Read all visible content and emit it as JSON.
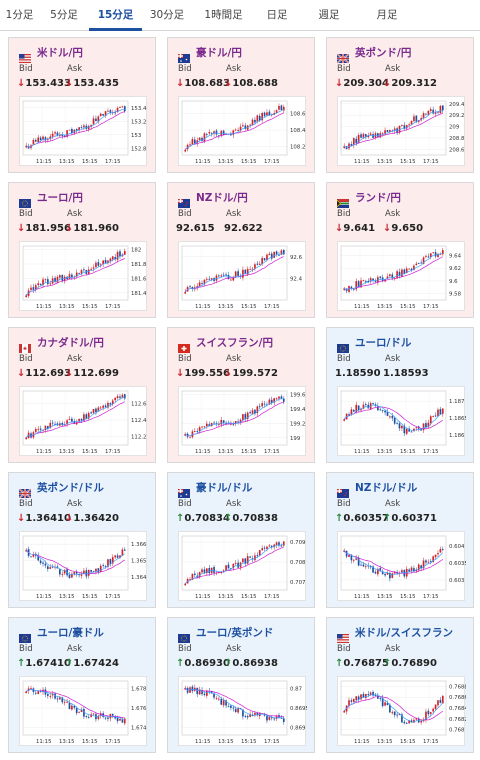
{
  "tabs": [
    {
      "label": "1分足",
      "active": false
    },
    {
      "label": "5分足",
      "active": false
    },
    {
      "label": "15分足",
      "active": true
    },
    {
      "label": "30分足",
      "active": false
    },
    {
      "label": "1時間足",
      "active": false
    },
    {
      "label": "日足",
      "active": false
    },
    {
      "label": "週足",
      "active": false
    },
    {
      "label": "月足",
      "active": false
    }
  ],
  "labels": {
    "bid": "Bid",
    "ask": "Ask"
  },
  "arrows": {
    "down": "↓",
    "up": "↑"
  },
  "colors": {
    "accent": "#1e50a2",
    "pair_jpy": "#7a2a8c",
    "down": "#d0242a",
    "up": "#2b8a3e",
    "card_red": "#fcecec",
    "card_blue": "#eaf3fb",
    "candle_up": "#d0242a",
    "candle_down": "#1e50a2",
    "ma": "#d020d0",
    "ma2": "#40a0ff"
  },
  "cards": [
    {
      "name": "米ドル/円",
      "flag": "us-flag",
      "theme": "red",
      "bid_dir": "down",
      "ask_dir": "down",
      "bid": "153.433",
      "ask": "153.435",
      "chart_data": {
        "type": "candlestick",
        "x_ticks": [
          "11:15",
          "13:15",
          "15:15",
          "17:15"
        ],
        "y_ticks": [
          "153.4",
          "153.2",
          "153",
          "152.8"
        ],
        "ylim": [
          152.7,
          153.5
        ],
        "trend": "up"
      }
    },
    {
      "name": "豪ドル/円",
      "flag": "au-flag",
      "theme": "red",
      "bid_dir": "down",
      "ask_dir": "down",
      "bid": "108.683",
      "ask": "108.688",
      "chart_data": {
        "type": "candlestick",
        "x_ticks": [
          "11:15",
          "13:15",
          "15:15",
          "17:15"
        ],
        "y_ticks": [
          "108.6",
          "108.4",
          "108.2"
        ],
        "ylim": [
          108.1,
          108.75
        ],
        "trend": "up"
      }
    },
    {
      "name": "英ポンド/円",
      "flag": "uk-flag",
      "theme": "red",
      "bid_dir": "down",
      "ask_dir": "down",
      "bid": "209.304",
      "ask": "209.312",
      "chart_data": {
        "type": "candlestick",
        "x_ticks": [
          "11:15",
          "13:15",
          "15:15",
          "17:15"
        ],
        "y_ticks": [
          "209.4",
          "209.2",
          "209",
          "208.8",
          "208.6"
        ],
        "ylim": [
          208.5,
          209.45
        ],
        "trend": "up"
      }
    },
    {
      "name": "ユーロ/円",
      "flag": "eu-flag",
      "theme": "red",
      "bid_dir": "down",
      "ask_dir": "down",
      "bid": "181.956",
      "ask": "181.960",
      "chart_data": {
        "type": "candlestick",
        "x_ticks": [
          "11:15",
          "13:15",
          "15:15",
          "17:15"
        ],
        "y_ticks": [
          "182",
          "181.8",
          "181.6",
          "181.4"
        ],
        "ylim": [
          181.3,
          182.05
        ],
        "trend": "up"
      }
    },
    {
      "name": "NZドル/円",
      "flag": "nz-flag",
      "theme": "red",
      "bid_dir": "none",
      "ask_dir": "none",
      "bid": "92.615",
      "ask": "92.622",
      "chart_data": {
        "type": "candlestick",
        "x_ticks": [
          "11:15",
          "13:15",
          "15:15",
          "17:15"
        ],
        "y_ticks": [
          "92.6",
          "92.4"
        ],
        "ylim": [
          92.2,
          92.7
        ],
        "trend": "up"
      }
    },
    {
      "name": "ランド/円",
      "flag": "za-flag",
      "theme": "red",
      "bid_dir": "down",
      "ask_dir": "down",
      "bid": "9.641",
      "ask": "9.650",
      "chart_data": {
        "type": "candlestick",
        "x_ticks": [
          "11:15",
          "13:15",
          "15:15",
          "17:15"
        ],
        "y_ticks": [
          "9.64",
          "9.62",
          "9.6",
          "9.58"
        ],
        "ylim": [
          9.57,
          9.655
        ],
        "trend": "up"
      }
    },
    {
      "name": "カナダドル/円",
      "flag": "ca-flag",
      "theme": "red",
      "bid_dir": "down",
      "ask_dir": "down",
      "bid": "112.693",
      "ask": "112.699",
      "chart_data": {
        "type": "candlestick",
        "x_ticks": [
          "11:15",
          "13:15",
          "15:15",
          "17:15"
        ],
        "y_ticks": [
          "112.6",
          "112.4",
          "112.2"
        ],
        "ylim": [
          112.1,
          112.75
        ],
        "trend": "up"
      }
    },
    {
      "name": "スイスフラン/円",
      "flag": "ch-flag",
      "theme": "red",
      "bid_dir": "down",
      "ask_dir": "down",
      "bid": "199.556",
      "ask": "199.572",
      "chart_data": {
        "type": "candlestick",
        "x_ticks": [
          "11:15",
          "13:15",
          "15:15",
          "17:15"
        ],
        "y_ticks": [
          "199.6",
          "199.4",
          "199.2",
          "199"
        ],
        "ylim": [
          198.9,
          199.65
        ],
        "trend": "up"
      }
    },
    {
      "name": "ユーロ/ドル",
      "flag": "eu-flag",
      "theme": "blue",
      "bid_dir": "none",
      "ask_dir": "none",
      "bid": "1.18590",
      "ask": "1.18593",
      "chart_data": {
        "type": "candlestick",
        "x_ticks": [
          "11:15",
          "13:15",
          "15:15",
          "17:15"
        ],
        "y_ticks": [
          "1.187",
          "1.1865",
          "1.186"
        ],
        "ylim": [
          1.1857,
          1.1873
        ],
        "trend": "flat"
      }
    },
    {
      "name": "英ポンド/ドル",
      "flag": "uk-flag",
      "theme": "blue",
      "bid_dir": "down",
      "ask_dir": "down",
      "bid": "1.36410",
      "ask": "1.36420",
      "chart_data": {
        "type": "candlestick",
        "x_ticks": [
          "11:15",
          "13:15",
          "15:15",
          "17:15"
        ],
        "y_ticks": [
          "1.366",
          "1.365",
          "1.364"
        ],
        "ylim": [
          1.3632,
          1.3665
        ],
        "trend": "dip"
      }
    },
    {
      "name": "豪ドル/ドル",
      "flag": "au-flag",
      "theme": "blue",
      "bid_dir": "up",
      "ask_dir": "up",
      "bid": "0.70834",
      "ask": "0.70838",
      "chart_data": {
        "type": "candlestick",
        "x_ticks": [
          "11:15",
          "13:15",
          "15:15",
          "17:15"
        ],
        "y_ticks": [
          "0.709",
          "0.708",
          "0.707"
        ],
        "ylim": [
          0.7066,
          0.7093
        ],
        "trend": "up"
      }
    },
    {
      "name": "NZドル/ドル",
      "flag": "nz-flag",
      "theme": "blue",
      "bid_dir": "up",
      "ask_dir": "up",
      "bid": "0.60357",
      "ask": "0.60371",
      "chart_data": {
        "type": "candlestick",
        "x_ticks": [
          "11:15",
          "13:15",
          "15:15",
          "17:15"
        ],
        "y_ticks": [
          "0.604",
          "0.6035",
          "0.603"
        ],
        "ylim": [
          0.6027,
          0.6043
        ],
        "trend": "dip"
      }
    },
    {
      "name": "ユーロ/豪ドル",
      "flag": "eu-flag",
      "theme": "blue",
      "bid_dir": "up",
      "ask_dir": "up",
      "bid": "1.67410",
      "ask": "1.67424",
      "chart_data": {
        "type": "candlestick",
        "x_ticks": [
          "11:15",
          "13:15",
          "15:15",
          "17:15"
        ],
        "y_ticks": [
          "1.678",
          "1.676",
          "1.674"
        ],
        "ylim": [
          1.6732,
          1.6788
        ],
        "trend": "down"
      }
    },
    {
      "name": "ユーロ/英ポンド",
      "flag": "eu-flag",
      "theme": "blue",
      "bid_dir": "up",
      "ask_dir": "up",
      "bid": "0.86930",
      "ask": "0.86938",
      "chart_data": {
        "type": "candlestick",
        "x_ticks": [
          "11:15",
          "13:15",
          "15:15",
          "17:15"
        ],
        "y_ticks": [
          "0.87",
          "0.8695",
          "0.869"
        ],
        "ylim": [
          0.8688,
          0.8702
        ],
        "trend": "down"
      }
    },
    {
      "name": "米ドル/スイスフラン",
      "flag": "us-flag",
      "theme": "blue",
      "bid_dir": "up",
      "ask_dir": "up",
      "bid": "0.76875",
      "ask": "0.76890",
      "chart_data": {
        "type": "candlestick",
        "x_ticks": [
          "11:15",
          "13:15",
          "15:15",
          "17:15"
        ],
        "y_ticks": [
          "0.7688",
          "0.7686",
          "0.7684",
          "0.7682",
          "0.768"
        ],
        "ylim": [
          0.7679,
          0.7689
        ],
        "trend": "flat"
      }
    }
  ]
}
